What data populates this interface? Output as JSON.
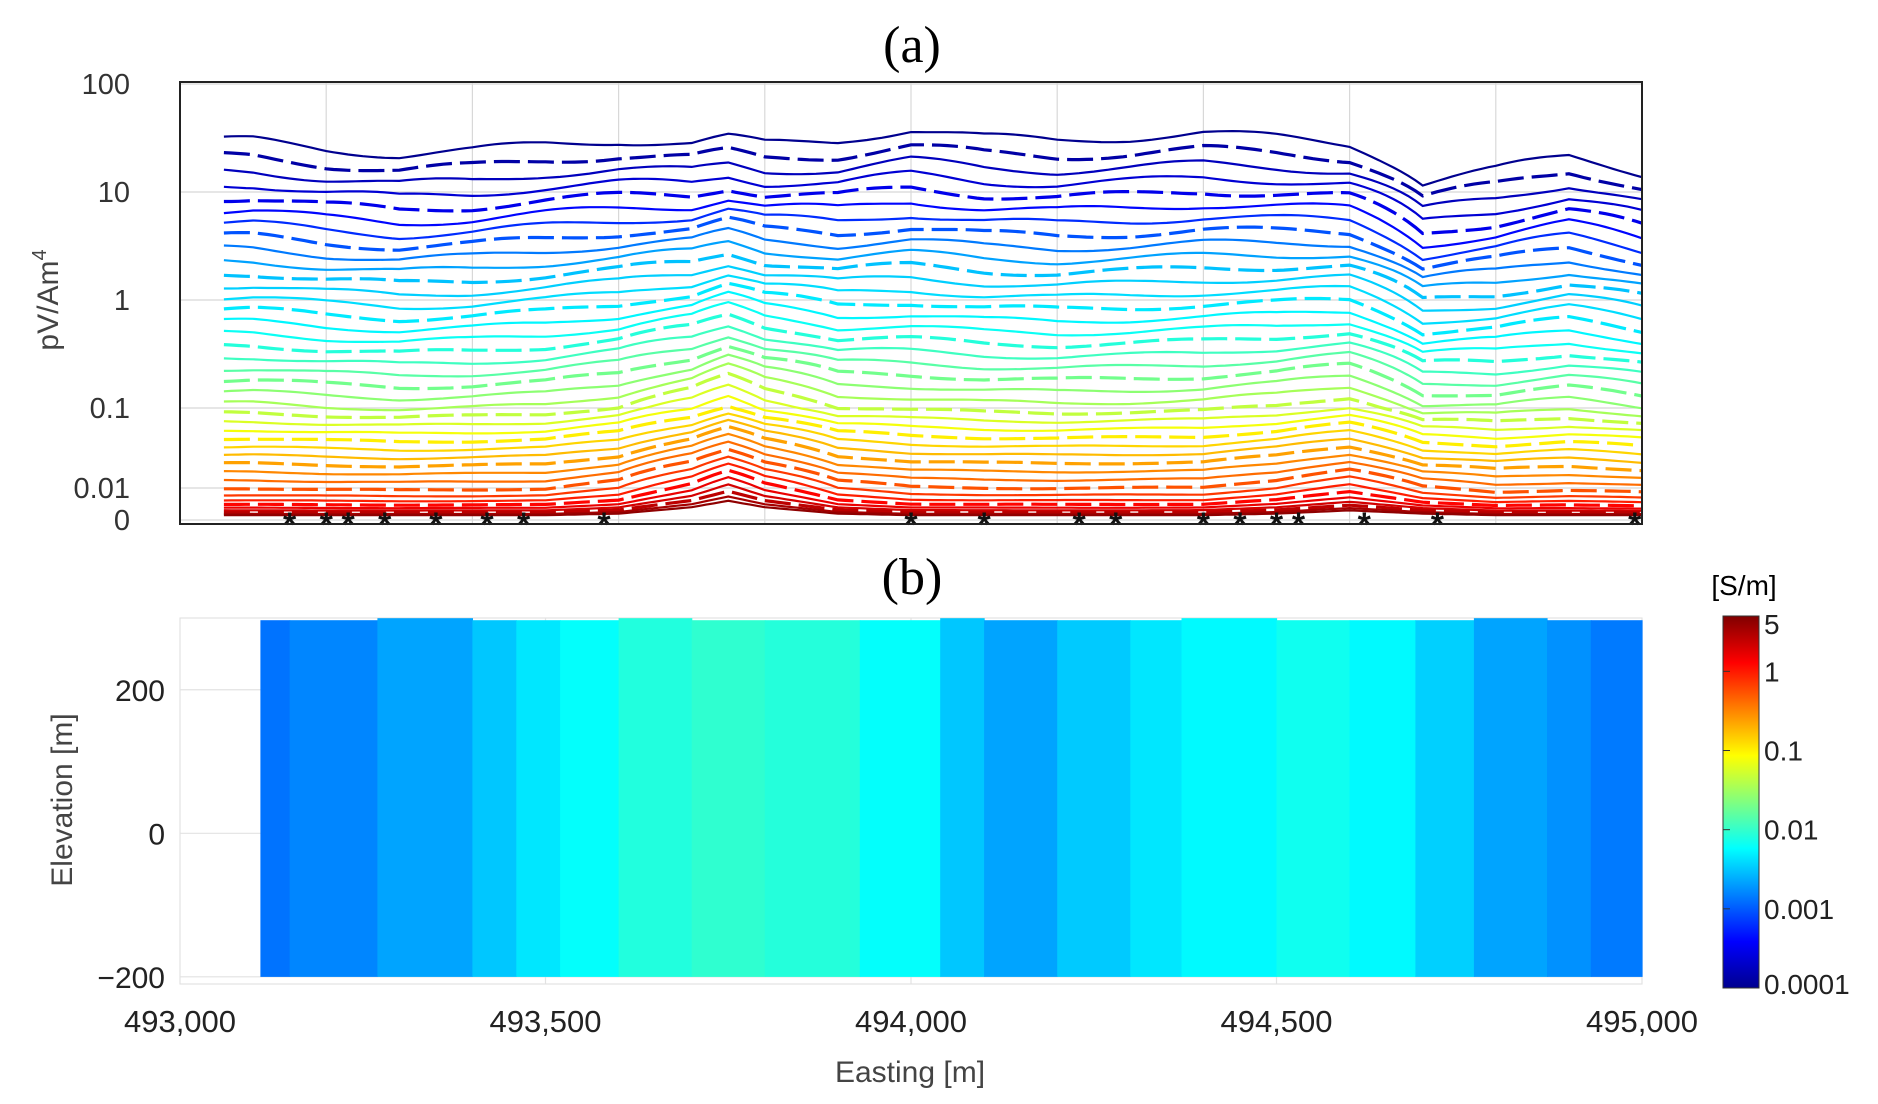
{
  "chart_data": [
    {
      "type": "line",
      "panel_label": "(a)",
      "title": "(a)",
      "xlabel": "",
      "ylabel": "pV/Am",
      "ylabel_superscript": "4",
      "yscale": "symlog",
      "ylim": [
        0,
        100
      ],
      "y_ticks": [
        "100",
        "10",
        "1",
        "0.1",
        "0.01",
        "0"
      ],
      "y_tick_values": [
        100,
        10,
        1,
        0.1,
        0.01,
        0
      ],
      "x_range": [
        493000,
        495000
      ],
      "x_gridlines": [
        493200,
        493400,
        493600,
        493800,
        494000,
        494200,
        494400,
        494600,
        494800
      ],
      "series_description": "Time-gate decay curves along profile; early gates (blue) high amplitude, late gates (red) low amplitude; solid and dashed lines alternate",
      "n_gates": 40,
      "colormap": [
        "#00008f",
        "#0000ff",
        "#00bfff",
        "#00ffff",
        "#7fff7f",
        "#ffff00",
        "#ff8000",
        "#ff0000",
        "#8f0000"
      ],
      "profile_x": [
        493100,
        493200,
        493300,
        493400,
        493500,
        493600,
        493700,
        493750,
        493800,
        493900,
        494000,
        494100,
        494200,
        494300,
        494400,
        494500,
        494600,
        494700,
        494800,
        494900,
        495000
      ],
      "early_gate_values": [
        30,
        25,
        22,
        24,
        28,
        30,
        28,
        32,
        28,
        30,
        38,
        32,
        30,
        32,
        35,
        32,
        28,
        12,
        16,
        22,
        15
      ],
      "late_gate_values": [
        0.0015,
        0.0015,
        0.0015,
        0.0015,
        0.0015,
        0.002,
        0.004,
        0.006,
        0.004,
        0.002,
        0.0015,
        0.0015,
        0.0015,
        0.0015,
        0.0015,
        0.002,
        0.003,
        0.002,
        0.0015,
        0.0015,
        0.0015
      ],
      "peak_positions_x": [
        493750,
        494600
      ],
      "sounding_markers_x": [
        493150,
        493200,
        493230,
        493280,
        493350,
        493420,
        493470,
        493580,
        494000,
        494100,
        494230,
        494280,
        494400,
        494450,
        494500,
        494530,
        494620,
        494720,
        494990
      ]
    },
    {
      "type": "heatmap",
      "panel_label": "(b)",
      "title": "(b)",
      "xlabel": "Easting [m]",
      "ylabel": "Elevation [m]",
      "xlim": [
        493000,
        495000
      ],
      "ylim": [
        -210,
        300
      ],
      "x_ticks": [
        "493,000",
        "493,500",
        "494,000",
        "494,500",
        "495,000"
      ],
      "x_tick_values": [
        493000,
        493500,
        494000,
        494500,
        495000
      ],
      "y_ticks": [
        "200",
        "0",
        "−200"
      ],
      "y_tick_values": [
        200,
        0,
        -200
      ],
      "top_elevation": 297,
      "bottom_elevation": -200,
      "column_edges_x": [
        493110,
        493150,
        493270,
        493400,
        493460,
        493520,
        493600,
        493700,
        493800,
        493930,
        494040,
        494100,
        494200,
        494300,
        494370,
        494500,
        494600,
        494690,
        494770,
        494870,
        494930,
        495000
      ],
      "column_conductivity": [
        0.0013,
        0.0016,
        0.0022,
        0.0032,
        0.0045,
        0.006,
        0.0082,
        0.0095,
        0.0085,
        0.006,
        0.0032,
        0.0022,
        0.0033,
        0.0045,
        0.0055,
        0.0068,
        0.0055,
        0.0035,
        0.0022,
        0.0018,
        0.0014
      ],
      "colorbar": {
        "label": "[S/m]",
        "scale": "log",
        "range": [
          0.0001,
          5
        ],
        "ticks": [
          "5",
          "1",
          "0.1",
          "0.01",
          "0.001",
          "0.0001"
        ],
        "tick_values": [
          5,
          1,
          0.1,
          0.01,
          0.001,
          0.0001
        ],
        "colormap": [
          "#00008f",
          "#0000ff",
          "#0080ff",
          "#00ffff",
          "#80ff80",
          "#ffff00",
          "#ff8000",
          "#ff0000",
          "#800000"
        ]
      }
    }
  ]
}
